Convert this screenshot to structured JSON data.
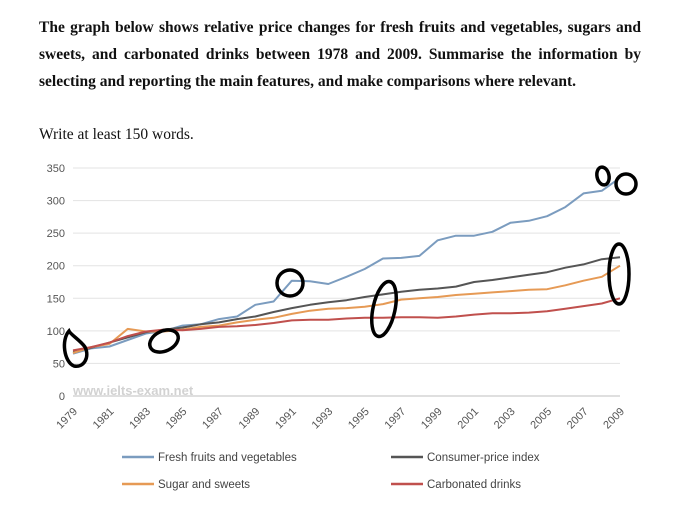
{
  "task": {
    "prompt": "The graph below shows relative price changes for fresh fruits and vegetables, sugars and sweets, and carbonated drinks between 1978 and 2009. Summarise the information by selecting and reporting the main features, and make comparisons where relevant.",
    "instruction": "Write at least 150 words."
  },
  "watermark": "www.ielts-exam.net",
  "chart_data": {
    "type": "line",
    "title": "",
    "xlabel": "",
    "ylabel": "",
    "ylim": [
      0,
      350
    ],
    "yticks": [
      0,
      50,
      100,
      150,
      200,
      250,
      300,
      350
    ],
    "x": [
      1979,
      1980,
      1981,
      1982,
      1983,
      1984,
      1985,
      1986,
      1987,
      1988,
      1989,
      1990,
      1991,
      1992,
      1993,
      1994,
      1995,
      1996,
      1997,
      1998,
      1999,
      2000,
      2001,
      2002,
      2003,
      2004,
      2005,
      2006,
      2007,
      2008,
      2009
    ],
    "xtick_labels": [
      "1979",
      "1981",
      "1983",
      "1985",
      "1987",
      "1989",
      "1991",
      "1993",
      "1995",
      "1997",
      "1999",
      "2001",
      "2003",
      "2005",
      "2007",
      "2009"
    ],
    "series": [
      {
        "name": "Fresh fruits and vegetables",
        "color": "#7b9cbf",
        "values": [
          65,
          73,
          76,
          86,
          96,
          100,
          108,
          110,
          118,
          122,
          140,
          145,
          177,
          176,
          172,
          183,
          195,
          211,
          212,
          215,
          239,
          246,
          246,
          252,
          266,
          269,
          276,
          290,
          311,
          315,
          335
        ]
      },
      {
        "name": "Consumer-price index",
        "color": "#555555",
        "values": [
          68,
          74,
          82,
          90,
          98,
          102,
          105,
          110,
          113,
          118,
          122,
          129,
          135,
          140,
          144,
          147,
          152,
          156,
          160,
          163,
          165,
          168,
          175,
          178,
          182,
          186,
          190,
          197,
          202,
          210,
          213
        ]
      },
      {
        "name": "Sugar and sweets",
        "color": "#e69a55",
        "values": [
          66,
          75,
          80,
          103,
          99,
          99,
          102,
          106,
          108,
          113,
          117,
          120,
          126,
          131,
          134,
          135,
          137,
          141,
          148,
          150,
          152,
          155,
          157,
          159,
          161,
          163,
          164,
          170,
          177,
          183,
          200
        ]
      },
      {
        "name": "Carbonated drinks",
        "color": "#c0504d",
        "values": [
          70,
          75,
          82,
          92,
          99,
          102,
          101,
          103,
          106,
          107,
          109,
          112,
          116,
          117,
          117,
          119,
          120,
          120,
          121,
          121,
          120,
          122,
          125,
          127,
          127,
          128,
          130,
          134,
          138,
          142,
          150
        ]
      }
    ],
    "legend": {
      "position": "bottom",
      "entries": [
        "Fresh fruits and vegetables",
        "Consumer-price index",
        "Sugar and sweets",
        "Carbonated drinks"
      ]
    },
    "annotations": [
      "hand-drawn circles marking points of interest (1979, 1983, 1991, 1996, 2008, 2009)"
    ]
  }
}
